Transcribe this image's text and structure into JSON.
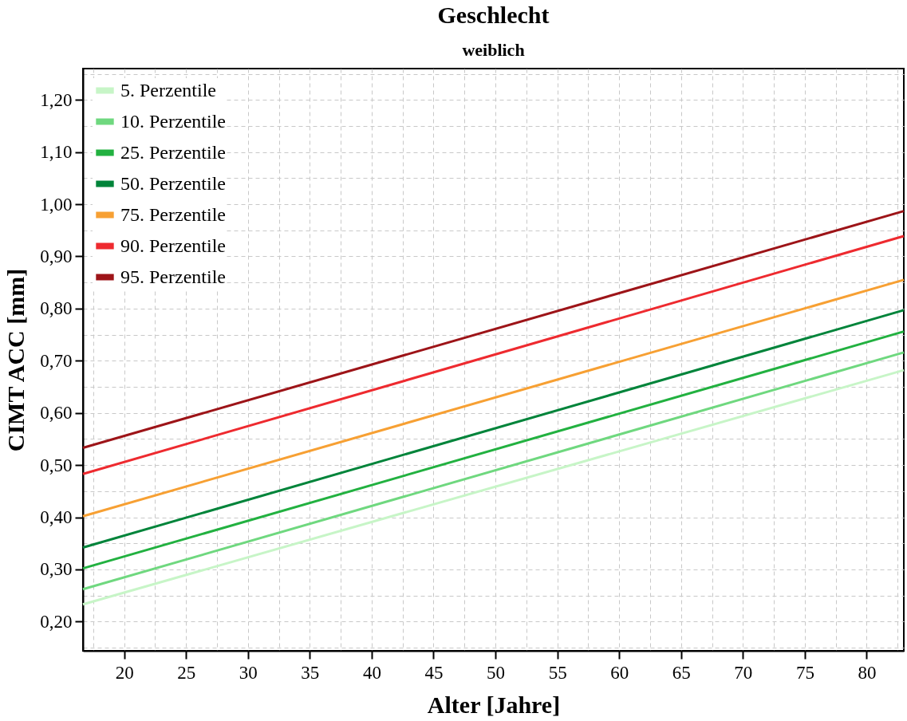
{
  "chart_data": {
    "type": "line",
    "title": "Geschlecht",
    "subtitle": "weiblich",
    "xlabel": "Alter [Jahre]",
    "ylabel": "CIMT ACC [mm]",
    "x": [
      16.67,
      83
    ],
    "series": [
      {
        "name": "5. Perzentile",
        "color": "#c7f5c7",
        "values": [
          0.233,
          0.682
        ]
      },
      {
        "name": "10. Perzentile",
        "color": "#6fd87f",
        "values": [
          0.262,
          0.716
        ]
      },
      {
        "name": "25. Perzentile",
        "color": "#22b140",
        "values": [
          0.302,
          0.756
        ]
      },
      {
        "name": "50. Perzentile",
        "color": "#00843a",
        "values": [
          0.342,
          0.797
        ]
      },
      {
        "name": "75. Perzentile",
        "color": "#f7a033",
        "values": [
          0.402,
          0.855
        ]
      },
      {
        "name": "90. Perzentile",
        "color": "#ee2a2f",
        "values": [
          0.483,
          0.939
        ]
      },
      {
        "name": "95. Perzentile",
        "color": "#9d1418",
        "values": [
          0.533,
          0.987
        ]
      }
    ],
    "xlim": [
      16.67,
      83
    ],
    "ylim": [
      0.144,
      1.26
    ],
    "xticks": [
      {
        "value": 17.5,
        "label": null
      },
      20,
      {
        "value": 22.5,
        "label": null
      },
      25,
      {
        "value": 27.5,
        "label": null
      },
      30,
      {
        "value": 32.5,
        "label": null
      },
      35,
      {
        "value": 37.5,
        "label": null
      },
      40,
      {
        "value": 42.5,
        "label": null
      },
      45,
      {
        "value": 47.5,
        "label": null
      },
      50,
      {
        "value": 52.5,
        "label": null
      },
      55,
      {
        "value": 57.5,
        "label": null
      },
      60,
      {
        "value": 62.5,
        "label": null
      },
      65,
      {
        "value": 67.5,
        "label": null
      },
      70,
      {
        "value": 72.5,
        "label": null
      },
      75,
      {
        "value": 77.5,
        "label": null
      },
      80,
      {
        "value": 82.5,
        "label": null
      }
    ],
    "yticks": [
      {
        "value": 0.15,
        "label": null
      },
      {
        "value": 0.2,
        "label": "0,20"
      },
      {
        "value": 0.25,
        "label": null
      },
      {
        "value": 0.3,
        "label": "0,30"
      },
      {
        "value": 0.35,
        "label": null
      },
      {
        "value": 0.4,
        "label": "0,40"
      },
      {
        "value": 0.45,
        "label": null
      },
      {
        "value": 0.5,
        "label": "0,50"
      },
      {
        "value": 0.55,
        "label": null
      },
      {
        "value": 0.6,
        "label": "0,60"
      },
      {
        "value": 0.65,
        "label": null
      },
      {
        "value": 0.7,
        "label": "0,70"
      },
      {
        "value": 0.75,
        "label": null
      },
      {
        "value": 0.8,
        "label": "0,80"
      },
      {
        "value": 0.85,
        "label": null
      },
      {
        "value": 0.9,
        "label": "0,90"
      },
      {
        "value": 0.95,
        "label": null
      },
      {
        "value": 1.0,
        "label": "1,00"
      },
      {
        "value": 1.05,
        "label": null
      },
      {
        "value": 1.1,
        "label": "1,10"
      },
      {
        "value": 1.15,
        "label": null
      },
      {
        "value": 1.2,
        "label": "1,20"
      },
      {
        "value": 1.25,
        "label": null
      }
    ],
    "grid": true,
    "legend": "top left",
    "marker": "none",
    "line_style": "solid"
  }
}
